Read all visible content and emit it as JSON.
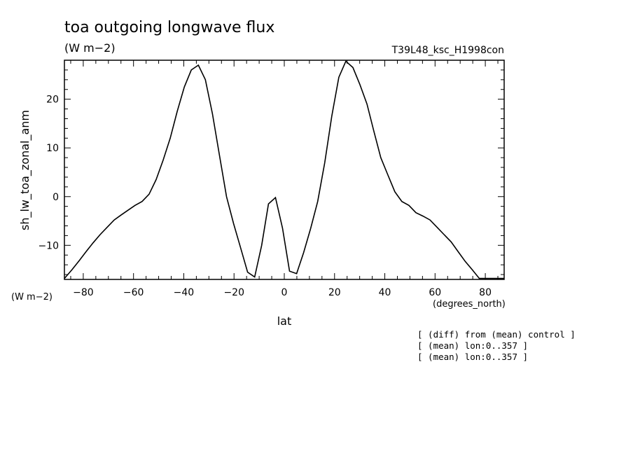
{
  "chart_data": {
    "type": "line",
    "title": "toa outgoing longwave flux",
    "units": "(W m−2)",
    "experiment": "T39L48_ksc_H1998con",
    "ylabel": "sh_lw_toa_zonal_anm",
    "yunits": "(W m−2)",
    "xlabel": "lat",
    "xunits": "(degrees_north)",
    "xlim": [
      -87.5,
      87.5
    ],
    "ylim": [
      -17,
      28
    ],
    "xticks": [
      -80,
      -60,
      -40,
      -20,
      0,
      20,
      40,
      60,
      80
    ],
    "yticks": [
      -10,
      0,
      10,
      20
    ],
    "grid": false,
    "series": [
      {
        "x": [
          -87.5,
          -84.5,
          -81.7,
          -78.9,
          -76.1,
          -73.3,
          -70.5,
          -67.7,
          -65.0,
          -62.2,
          -59.4,
          -56.6,
          -53.8,
          -51.0,
          -48.2,
          -45.4,
          -42.6,
          -39.8,
          -37.0,
          -34.2,
          -31.4,
          -28.6,
          -25.8,
          -23.0,
          -20.2,
          -17.4,
          -14.6,
          -11.8,
          -9.0,
          -6.3,
          -3.5,
          -0.7,
          2.1,
          4.9,
          7.7,
          10.5,
          13.3,
          16.1,
          18.9,
          21.7,
          24.5,
          27.3,
          30.1,
          32.9,
          35.6,
          38.4,
          41.2,
          44.0,
          46.8,
          49.6,
          52.4,
          55.2,
          58.0,
          60.8,
          63.6,
          66.4,
          69.2,
          72.0,
          74.8,
          77.6,
          80.4,
          83.2,
          86.0,
          87.5
        ],
        "y": [
          -16.8,
          -15.0,
          -13.2,
          -11.3,
          -9.5,
          -7.8,
          -6.3,
          -4.8,
          -3.8,
          -2.8,
          -1.8,
          -1.0,
          0.5,
          3.5,
          7.5,
          12.0,
          17.5,
          22.5,
          26.0,
          27.0,
          24.0,
          17.0,
          8.5,
          0.0,
          -5.5,
          -10.5,
          -15.5,
          -16.5,
          -10.0,
          -1.5,
          -0.2,
          -6.5,
          -15.3,
          -15.8,
          -11.5,
          -6.5,
          -1.0,
          7.0,
          16.5,
          24.5,
          27.8,
          26.5,
          23.0,
          19.0,
          13.5,
          8.0,
          4.5,
          1.0,
          -1.0,
          -1.8,
          -3.3,
          -4.0,
          -4.8,
          -6.3,
          -7.8,
          -9.3,
          -11.3,
          -13.3,
          -15.0,
          -16.8,
          -16.8,
          -16.8,
          -16.8,
          -16.8
        ]
      }
    ]
  },
  "annotations": [
    "[ (diff) from (mean) control ]",
    "[ (mean) lon:0..357 ]",
    "[ (mean) lon:0..357 ]"
  ]
}
